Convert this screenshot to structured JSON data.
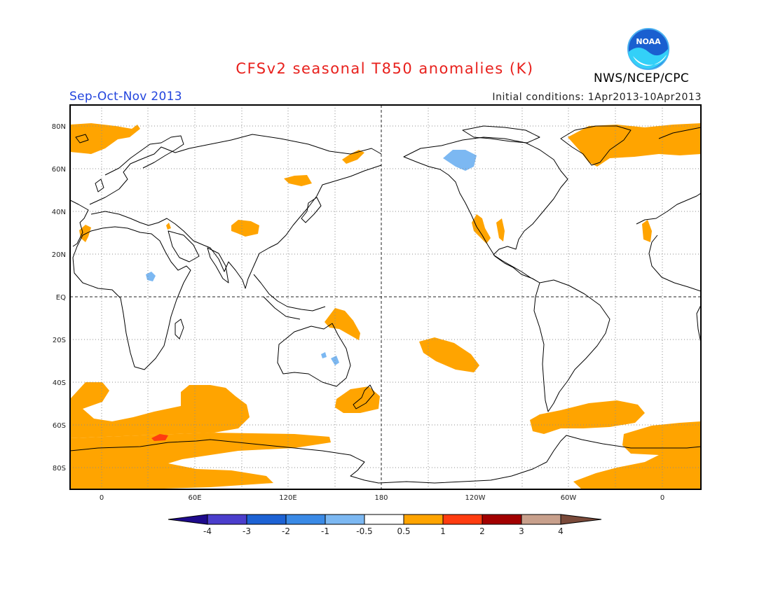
{
  "header": {
    "title": "CFSv2 seasonal T850 anomalies (K)",
    "season": "Sep-Oct-Nov 2013",
    "initial_conditions": "Initial conditions: 1Apr2013-10Apr2013",
    "agency": "NWS/NCEP/CPC",
    "logo_text": "NOAA"
  },
  "axes": {
    "lat_labels": [
      "80N",
      "60N",
      "40N",
      "20N",
      "EQ",
      "20S",
      "40S",
      "60S",
      "80S"
    ],
    "lon_labels": [
      "0",
      "60E",
      "120E",
      "180",
      "120W",
      "60W",
      "0"
    ]
  },
  "colorbar": {
    "labels": [
      "-4",
      "-3",
      "-2",
      "-1",
      "-0.5",
      "0.5",
      "1",
      "2",
      "3",
      "4"
    ],
    "colors": [
      "#1e0a8c",
      "#4b3ecc",
      "#1d62d4",
      "#3a8ae6",
      "#7cb8f2",
      "#ffffff",
      "#ffa400",
      "#ff3c10",
      "#a20000",
      "#c8a08c",
      "#7a4a3a"
    ]
  },
  "colors": {
    "title": "#e8201c",
    "season": "#2244dd",
    "warm": "#ffa400",
    "hot": "#ff3c10",
    "cool": "#7cb8f2"
  }
}
